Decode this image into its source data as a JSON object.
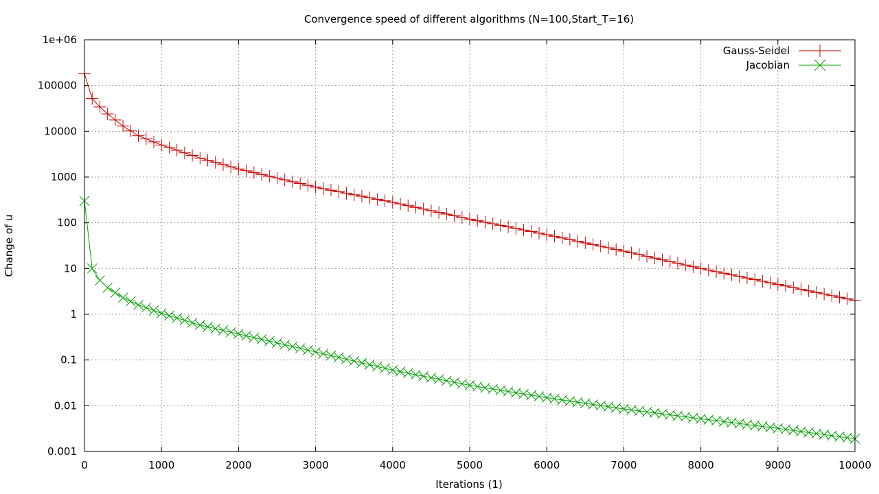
{
  "chart_data": {
    "type": "line",
    "title": "Convergence speed of different algorithms (N=100,Start_T=16)",
    "xlabel": "Iterations (1)",
    "ylabel": "Change of u",
    "xlim": [
      0,
      10000
    ],
    "ylim": [
      0.001,
      1000000
    ],
    "y_scale": "log",
    "grid": true,
    "legend_position": "top-right",
    "x_ticks": [
      0,
      1000,
      2000,
      3000,
      4000,
      5000,
      6000,
      7000,
      8000,
      9000,
      10000
    ],
    "x_tick_labels": [
      "0",
      "1000",
      "2000",
      "3000",
      "4000",
      "5000",
      "6000",
      "7000",
      "8000",
      "9000",
      "10000"
    ],
    "y_ticks": [
      0.001,
      0.01,
      0.1,
      1,
      10,
      100,
      1000,
      10000,
      100000,
      1000000
    ],
    "y_tick_labels": [
      "0.001",
      "0.01",
      "0.1",
      "1",
      "10",
      "100",
      "1000",
      "10000",
      "100000",
      "1e+06"
    ],
    "series": [
      {
        "name": "Gauss-Seidel",
        "color": "#cc0000",
        "marker": "plus",
        "x": [
          0,
          100,
          200,
          300,
          500,
          700,
          1000,
          1500,
          2000,
          3000,
          4000,
          5000,
          6000,
          7000,
          8000,
          9000,
          10000
        ],
        "y": [
          180000,
          52000,
          34000,
          24000,
          13000,
          8000,
          5000,
          2600,
          1500,
          600,
          280,
          120,
          55,
          24,
          10,
          4.5,
          2
        ]
      },
      {
        "name": "Jacobian",
        "color": "#00a000",
        "marker": "cross",
        "x": [
          0,
          100,
          200,
          300,
          500,
          700,
          1000,
          1500,
          2000,
          3000,
          4000,
          5000,
          6000,
          7000,
          8000,
          9000,
          10000
        ],
        "y": [
          300,
          10,
          5.5,
          3.8,
          2.3,
          1.6,
          1.05,
          0.58,
          0.37,
          0.15,
          0.06,
          0.028,
          0.015,
          0.0085,
          0.0052,
          0.0032,
          0.0019
        ]
      }
    ]
  }
}
